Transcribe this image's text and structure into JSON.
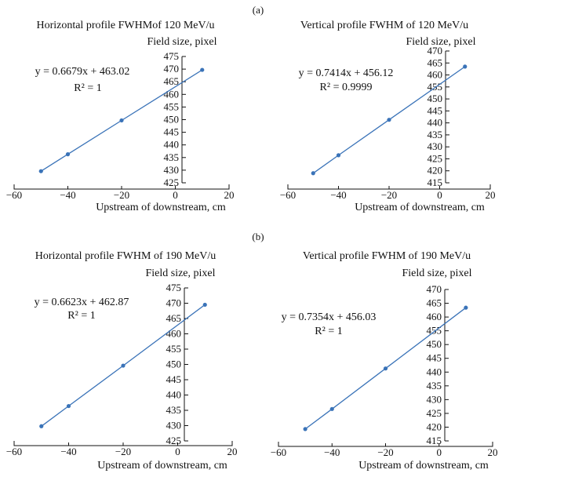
{
  "colors": {
    "series": "#3a73b8",
    "axis": "#111111"
  },
  "labels": {
    "panel_a": "(a)",
    "panel_b": "(b)"
  },
  "chart_data": [
    {
      "type": "line",
      "title": "Horizontal profile FWHMof 120 MeV/u",
      "ylabel": "Field size, pixel",
      "xlabel": "Upstream of downstream, cm",
      "xlim": [
        -60,
        20
      ],
      "ylim": [
        425,
        475
      ],
      "xticks": [
        "−60",
        "−40",
        "−20",
        "0",
        "20"
      ],
      "yticks": [
        "475",
        "470",
        "465",
        "460",
        "455",
        "450",
        "445",
        "440",
        "435",
        "430",
        "425"
      ],
      "equation": "y = 0.6679x + 463.02",
      "r2": "R² = 1",
      "series": [
        {
          "name": "Horizontal 120 MeV/u",
          "x": [
            -50,
            -40,
            -20,
            10
          ],
          "y": [
            429.6,
            436.3,
            449.7,
            469.7
          ]
        }
      ]
    },
    {
      "type": "line",
      "title": "Vertical profile FWHM of 120 MeV/u",
      "ylabel": "Field size, pixel",
      "xlabel": "Upstream of downstream, cm",
      "xlim": [
        -60,
        20
      ],
      "ylim": [
        415,
        470
      ],
      "xticks": [
        "−60",
        "−40",
        "−20",
        "0",
        "20"
      ],
      "yticks": [
        "470",
        "465",
        "460",
        "455",
        "450",
        "445",
        "440",
        "435",
        "430",
        "425",
        "420",
        "415"
      ],
      "equation": "y = 0.7414x + 456.12",
      "r2": "R² = 0.9999",
      "series": [
        {
          "name": "Vertical 120 MeV/u",
          "x": [
            -50,
            -40,
            -20,
            10
          ],
          "y": [
            419.0,
            426.5,
            441.3,
            463.5
          ]
        }
      ]
    },
    {
      "type": "line",
      "title": "Horizontal profile FWHM of 190 MeV/u",
      "ylabel": "Field size, pixel",
      "xlabel": "Upstream of downstream, cm",
      "xlim": [
        -60,
        20
      ],
      "ylim": [
        425,
        475
      ],
      "xticks": [
        "−60",
        "−40",
        "−20",
        "0",
        "20"
      ],
      "yticks": [
        "475",
        "470",
        "465",
        "460",
        "455",
        "450",
        "445",
        "440",
        "435",
        "430",
        "425"
      ],
      "equation": "y = 0.6623x + 462.87",
      "r2": "R² = 1",
      "series": [
        {
          "name": "Horizontal 190 MeV/u",
          "x": [
            -50,
            -40,
            -20,
            10
          ],
          "y": [
            429.8,
            436.4,
            449.6,
            469.5
          ]
        }
      ]
    },
    {
      "type": "line",
      "title": "Vertical profile FWHM of 190 MeV/u",
      "ylabel": "Field size, pixel",
      "xlabel": "Upstream of downstream, cm",
      "xlim": [
        -60,
        20
      ],
      "ylim": [
        415,
        470
      ],
      "xticks": [
        "−60",
        "−40",
        "−20",
        "0",
        "20"
      ],
      "yticks": [
        "470",
        "465",
        "460",
        "455",
        "450",
        "445",
        "440",
        "435",
        "430",
        "425",
        "420",
        "415"
      ],
      "equation": "y = 0.7354x + 456.03",
      "r2": "R² = 1",
      "series": [
        {
          "name": "Vertical 190 MeV/u",
          "x": [
            -50,
            -40,
            -20,
            10
          ],
          "y": [
            419.3,
            426.6,
            441.3,
            463.4
          ]
        }
      ]
    }
  ]
}
